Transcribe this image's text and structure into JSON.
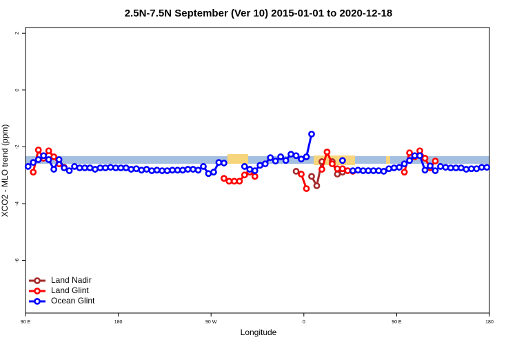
{
  "chart_data": {
    "type": "line",
    "title": "2.5N-7.5N September (Ver 10)   2015-01-01 to 2020-12-18",
    "xlabel": "Longitude",
    "ylabel": "XCO2 - MLO trend (ppm)",
    "xlim": [
      90,
      540
    ],
    "xticks": [
      {
        "value": 90,
        "label": "90 E"
      },
      180,
      {
        "value": 270,
        "label": "90 W"
      },
      {
        "value": 360,
        "label": "0"
      },
      {
        "value": 450,
        "label": "90 E"
      },
      {
        "value": 540,
        "label": "180"
      }
    ],
    "ylim": [
      -7.85,
      2.2
    ],
    "yticks": [
      -6,
      -4,
      -2,
      0,
      2
    ],
    "legend": "bottom-left",
    "x": [
      92.5,
      97.5,
      102.5,
      107.5,
      112.5,
      117.5,
      122.5,
      127.5,
      132.5,
      137.5,
      142.5,
      147.5,
      152.5,
      157.5,
      162.5,
      167.5,
      172.5,
      177.5,
      182.5,
      187.5,
      192.5,
      197.5,
      202.5,
      207.5,
      212.5,
      217.5,
      222.5,
      227.5,
      232.5,
      237.5,
      242.5,
      247.5,
      252.5,
      257.5,
      262.5,
      267.5,
      272.5,
      277.5,
      282.5,
      287.5,
      292.5,
      297.5,
      302.5,
      307.5,
      312.5,
      317.5,
      322.5,
      327.5,
      332.5,
      337.5,
      342.5,
      347.5,
      352.5,
      357.5,
      362.5,
      367.5,
      372.5,
      377.5,
      382.5,
      387.5,
      392.5,
      397.5,
      402.5,
      407.5,
      412.5,
      417.5,
      422.5,
      427.5,
      432.5,
      437.5,
      442.5,
      447.5,
      452.5,
      457.5,
      462.5,
      467.5,
      472.5,
      477.5,
      482.5,
      487.5,
      492.5,
      497.5,
      502.5,
      507.5,
      512.5,
      517.5,
      522.5,
      527.5,
      532.5,
      537.5
    ],
    "series": [
      {
        "name": "Land Nadir",
        "color": "#a52a2a",
        "values": [
          null,
          null,
          null,
          null,
          null,
          null,
          null,
          null,
          null,
          null,
          null,
          null,
          null,
          null,
          null,
          null,
          null,
          null,
          null,
          null,
          null,
          null,
          null,
          null,
          null,
          null,
          null,
          null,
          null,
          null,
          null,
          null,
          null,
          null,
          null,
          null,
          null,
          null,
          null,
          null,
          null,
          null,
          null,
          null,
          null,
          null,
          null,
          null,
          null,
          null,
          null,
          null,
          -2.86,
          null,
          null,
          -3.04,
          -3.37,
          -2.52,
          null,
          -2.52,
          -2.96,
          -2.89,
          null,
          null,
          null,
          null,
          null,
          null,
          null,
          null,
          null,
          null,
          null,
          null,
          null,
          null,
          null,
          null,
          null,
          null,
          null,
          null,
          null,
          null,
          null,
          null,
          null,
          null,
          null,
          null
        ]
      },
      {
        "name": "Land Glint",
        "color": "#ff0000",
        "values": [
          null,
          -2.89,
          -2.11,
          -2.4,
          -2.14,
          -2.35,
          -2.6,
          -2.72,
          null,
          null,
          null,
          null,
          null,
          null,
          null,
          null,
          null,
          null,
          null,
          null,
          null,
          null,
          null,
          null,
          null,
          null,
          null,
          null,
          null,
          null,
          null,
          null,
          null,
          null,
          null,
          null,
          null,
          null,
          -3.11,
          -3.21,
          -3.21,
          -3.21,
          -2.99,
          -2.89,
          -3.04,
          null,
          null,
          null,
          null,
          null,
          null,
          null,
          null,
          -2.96,
          -3.47,
          null,
          null,
          -2.79,
          -2.18,
          -2.6,
          -2.77,
          -2.77,
          -2.84,
          -2.86,
          null,
          null,
          null,
          null,
          null,
          null,
          null,
          null,
          null,
          -2.89,
          -2.21,
          -2.35,
          -2.14,
          -2.4,
          -2.74,
          -2.5,
          null,
          null,
          null,
          null,
          null,
          null,
          null,
          null,
          null,
          null
        ]
      },
      {
        "name": "Ocean Glint",
        "color": "#0000ff",
        "values": [
          -2.69,
          -2.55,
          -2.45,
          -2.31,
          -2.45,
          -2.79,
          -2.45,
          -2.74,
          -2.84,
          -2.69,
          -2.74,
          -2.74,
          -2.74,
          -2.79,
          -2.74,
          -2.74,
          -2.72,
          -2.74,
          -2.74,
          -2.74,
          -2.79,
          -2.77,
          -2.82,
          -2.79,
          -2.84,
          -2.82,
          -2.84,
          -2.84,
          -2.82,
          -2.82,
          -2.82,
          -2.79,
          -2.79,
          -2.82,
          -2.69,
          -2.94,
          -2.89,
          -2.55,
          -2.57,
          null,
          null,
          null,
          -2.69,
          -2.79,
          -2.84,
          -2.65,
          -2.6,
          -2.38,
          -2.5,
          -2.35,
          -2.48,
          -2.26,
          -2.31,
          -2.43,
          -2.35,
          -1.55,
          null,
          null,
          null,
          null,
          null,
          -2.48,
          null,
          -2.84,
          -2.82,
          -2.84,
          -2.84,
          -2.84,
          -2.84,
          -2.86,
          -2.77,
          -2.74,
          -2.72,
          -2.6,
          -2.48,
          -2.31,
          -2.31,
          -2.82,
          -2.67,
          -2.84,
          -2.69,
          -2.72,
          -2.74,
          -2.74,
          -2.74,
          -2.79,
          -2.77,
          -2.77,
          -2.72,
          -2.72
        ]
      }
    ]
  }
}
